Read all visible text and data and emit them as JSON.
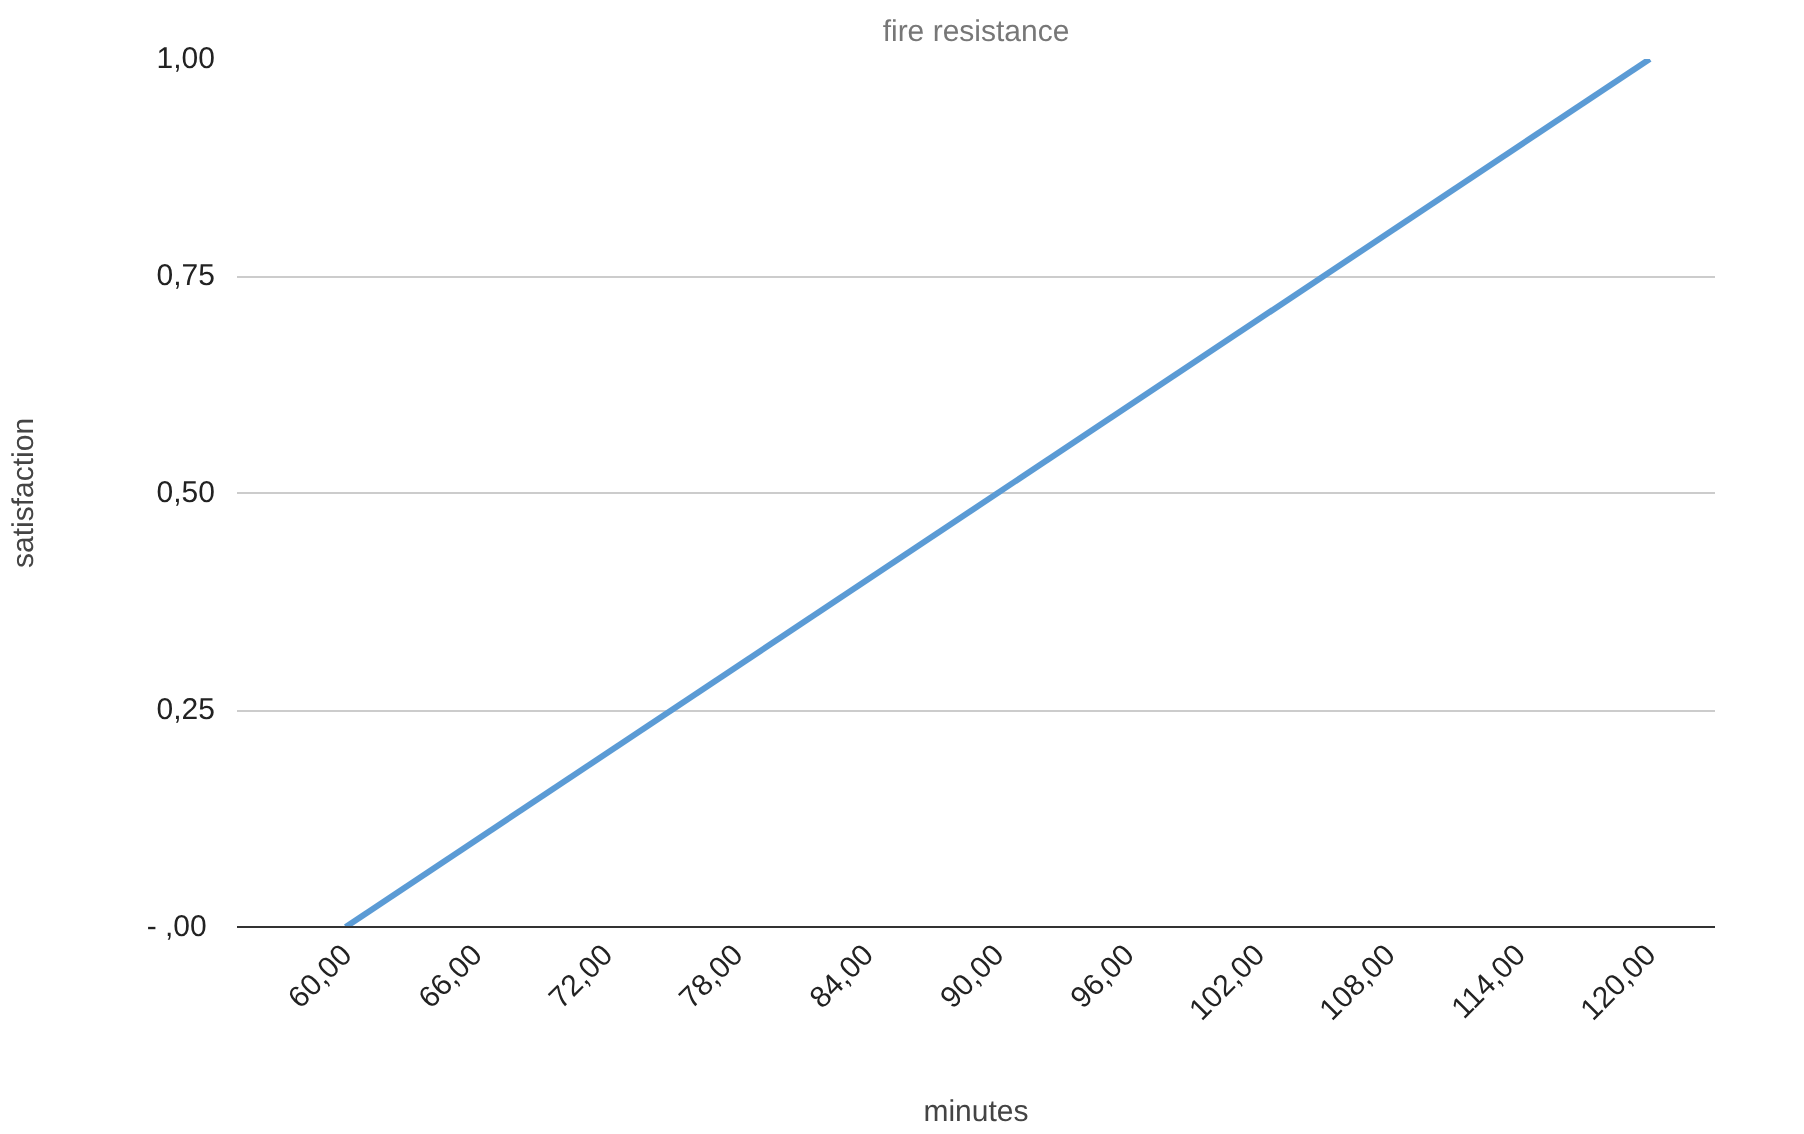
{
  "chart_data": {
    "type": "line",
    "title": "fire resistance",
    "xlabel": "minutes",
    "ylabel": "satisfaction",
    "x": [
      60,
      120
    ],
    "series": [
      {
        "color": "#5b9bd5",
        "values": [
          0,
          1
        ]
      }
    ],
    "xlim": [
      55,
      123
    ],
    "xticks": [
      {
        "value": 60,
        "label": "60,00"
      },
      {
        "value": 66,
        "label": "66,00"
      },
      {
        "value": 72,
        "label": "72,00"
      },
      {
        "value": 78,
        "label": "78,00"
      },
      {
        "value": 84,
        "label": "84,00"
      },
      {
        "value": 90,
        "label": "90,00"
      },
      {
        "value": 96,
        "label": "96,00"
      },
      {
        "value": 102,
        "label": "102,00"
      },
      {
        "value": 108,
        "label": "108,00"
      },
      {
        "value": 114,
        "label": "114,00"
      },
      {
        "value": 120,
        "label": "120,00"
      }
    ],
    "ylim": [
      0,
      1
    ],
    "yticks": [
      {
        "value": 0,
        "label": "-  ,00"
      },
      {
        "value": 0.25,
        "label": "0,25"
      },
      {
        "value": 0.5,
        "label": "0,50"
      },
      {
        "value": 0.75,
        "label": "0,75"
      },
      {
        "value": 1,
        "label": "1,00"
      }
    ],
    "grid": "y",
    "marker": "none",
    "line_style": "solid"
  }
}
